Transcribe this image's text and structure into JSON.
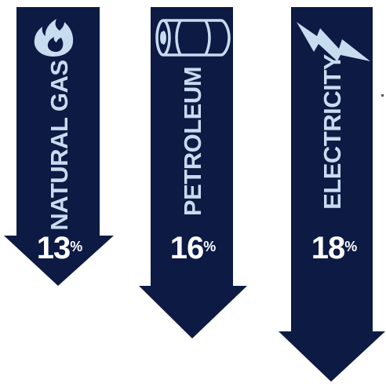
{
  "colors": {
    "arrow_fill": "#0c1a44",
    "label_color": "#c8dcf0",
    "icon_color": "#c8dcf0",
    "percent_color": "#ffffff",
    "background": "#ffffff"
  },
  "arrows": [
    {
      "label": "NATURAL GAS",
      "percent": "13",
      "percent_sign": "%",
      "icon": "flame-icon"
    },
    {
      "label": "PETROLEUM",
      "percent": "16",
      "percent_sign": "%",
      "icon": "oil-barrel-icon"
    },
    {
      "label": "ELECTRICITY",
      "percent": "18",
      "percent_sign": "%",
      "icon": "lightning-bolt-icon"
    }
  ]
}
